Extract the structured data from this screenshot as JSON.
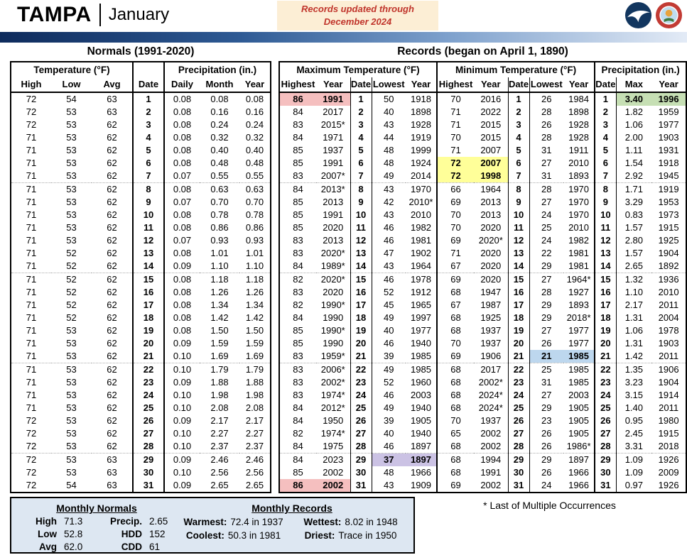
{
  "header": {
    "station": "TAMPA",
    "month": "January",
    "note_line1": "Records updated through",
    "note_line2": "December 2024"
  },
  "normals": {
    "title": "Normals (1991-2020)",
    "temp_group": "Temperature (°F)",
    "precip_group": "Precipitation (in.)",
    "columns": [
      "High",
      "Low",
      "Avg",
      "Date",
      "Daily",
      "Month",
      "Year"
    ],
    "rows": [
      [
        "72",
        "54",
        "63",
        "1",
        "0.08",
        "0.08",
        "0.08"
      ],
      [
        "72",
        "53",
        "63",
        "2",
        "0.08",
        "0.16",
        "0.16"
      ],
      [
        "72",
        "53",
        "62",
        "3",
        "0.08",
        "0.24",
        "0.24"
      ],
      [
        "71",
        "53",
        "62",
        "4",
        "0.08",
        "0.32",
        "0.32"
      ],
      [
        "71",
        "53",
        "62",
        "5",
        "0.08",
        "0.40",
        "0.40"
      ],
      [
        "71",
        "53",
        "62",
        "6",
        "0.08",
        "0.48",
        "0.48"
      ],
      [
        "71",
        "53",
        "62",
        "7",
        "0.07",
        "0.55",
        "0.55"
      ],
      [
        "71",
        "53",
        "62",
        "8",
        "0.08",
        "0.63",
        "0.63"
      ],
      [
        "71",
        "53",
        "62",
        "9",
        "0.07",
        "0.70",
        "0.70"
      ],
      [
        "71",
        "53",
        "62",
        "10",
        "0.08",
        "0.78",
        "0.78"
      ],
      [
        "71",
        "53",
        "62",
        "11",
        "0.08",
        "0.86",
        "0.86"
      ],
      [
        "71",
        "53",
        "62",
        "12",
        "0.07",
        "0.93",
        "0.93"
      ],
      [
        "71",
        "52",
        "62",
        "13",
        "0.08",
        "1.01",
        "1.01"
      ],
      [
        "71",
        "52",
        "62",
        "14",
        "0.09",
        "1.10",
        "1.10"
      ],
      [
        "71",
        "52",
        "62",
        "15",
        "0.08",
        "1.18",
        "1.18"
      ],
      [
        "71",
        "52",
        "62",
        "16",
        "0.08",
        "1.26",
        "1.26"
      ],
      [
        "71",
        "52",
        "62",
        "17",
        "0.08",
        "1.34",
        "1.34"
      ],
      [
        "71",
        "52",
        "62",
        "18",
        "0.08",
        "1.42",
        "1.42"
      ],
      [
        "71",
        "53",
        "62",
        "19",
        "0.08",
        "1.50",
        "1.50"
      ],
      [
        "71",
        "53",
        "62",
        "20",
        "0.09",
        "1.59",
        "1.59"
      ],
      [
        "71",
        "53",
        "62",
        "21",
        "0.10",
        "1.69",
        "1.69"
      ],
      [
        "71",
        "53",
        "62",
        "22",
        "0.10",
        "1.79",
        "1.79"
      ],
      [
        "71",
        "53",
        "62",
        "23",
        "0.09",
        "1.88",
        "1.88"
      ],
      [
        "71",
        "53",
        "62",
        "24",
        "0.10",
        "1.98",
        "1.98"
      ],
      [
        "71",
        "53",
        "62",
        "25",
        "0.10",
        "2.08",
        "2.08"
      ],
      [
        "72",
        "53",
        "62",
        "26",
        "0.09",
        "2.17",
        "2.17"
      ],
      [
        "72",
        "53",
        "62",
        "27",
        "0.10",
        "2.27",
        "2.27"
      ],
      [
        "72",
        "53",
        "62",
        "28",
        "0.10",
        "2.37",
        "2.37"
      ],
      [
        "72",
        "53",
        "63",
        "29",
        "0.09",
        "2.46",
        "2.46"
      ],
      [
        "72",
        "53",
        "63",
        "30",
        "0.10",
        "2.56",
        "2.56"
      ],
      [
        "72",
        "54",
        "63",
        "31",
        "0.09",
        "2.65",
        "2.65"
      ]
    ]
  },
  "records": {
    "title": "Records (began on April 1, 1890)",
    "max_group": "Maximum Temperature (°F)",
    "min_group": "Minimum Temperature (°F)",
    "precip_group": "Precipitation (in.)",
    "columns": [
      "Highest",
      "Year",
      "Date",
      "Lowest",
      "Year",
      "Highest",
      "Year",
      "Date",
      "Lowest",
      "Year",
      "Date",
      "Max",
      "Year"
    ],
    "rows": [
      [
        "86",
        "1991",
        "1",
        "50",
        "1918",
        "70",
        "2016",
        "1",
        "26",
        "1984",
        "1",
        "3.40",
        "1996"
      ],
      [
        "84",
        "2017",
        "2",
        "40",
        "1898",
        "71",
        "2022",
        "2",
        "28",
        "1898",
        "2",
        "1.82",
        "1959"
      ],
      [
        "83",
        "2015*",
        "3",
        "43",
        "1928",
        "71",
        "2015",
        "3",
        "26",
        "1928",
        "3",
        "1.06",
        "1977"
      ],
      [
        "84",
        "1971",
        "4",
        "44",
        "1919",
        "70",
        "2015",
        "4",
        "28",
        "1928",
        "4",
        "2.00",
        "1903"
      ],
      [
        "85",
        "1937",
        "5",
        "48",
        "1999",
        "71",
        "2007",
        "5",
        "31",
        "1911",
        "5",
        "1.11",
        "1931"
      ],
      [
        "85",
        "1991",
        "6",
        "48",
        "1924",
        "72",
        "2007",
        "6",
        "27",
        "2010",
        "6",
        "1.54",
        "1918"
      ],
      [
        "83",
        "2007*",
        "7",
        "49",
        "2014",
        "72",
        "1998",
        "7",
        "31",
        "1893",
        "7",
        "2.92",
        "1945"
      ],
      [
        "84",
        "2013*",
        "8",
        "43",
        "1970",
        "66",
        "1964",
        "8",
        "28",
        "1970",
        "8",
        "1.71",
        "1919"
      ],
      [
        "85",
        "2013",
        "9",
        "42",
        "2010*",
        "69",
        "2013",
        "9",
        "27",
        "1970",
        "9",
        "3.29",
        "1953"
      ],
      [
        "85",
        "1991",
        "10",
        "43",
        "2010",
        "70",
        "2013",
        "10",
        "24",
        "1970",
        "10",
        "0.83",
        "1973"
      ],
      [
        "85",
        "2020",
        "11",
        "46",
        "1982",
        "70",
        "2020",
        "11",
        "25",
        "2010",
        "11",
        "1.57",
        "1915"
      ],
      [
        "83",
        "2013",
        "12",
        "46",
        "1981",
        "69",
        "2020*",
        "12",
        "24",
        "1982",
        "12",
        "2.80",
        "1925"
      ],
      [
        "83",
        "2020*",
        "13",
        "47",
        "1902",
        "71",
        "2020",
        "13",
        "22",
        "1981",
        "13",
        "1.57",
        "1904"
      ],
      [
        "84",
        "1989*",
        "14",
        "43",
        "1964",
        "67",
        "2020",
        "14",
        "29",
        "1981",
        "14",
        "2.65",
        "1892"
      ],
      [
        "82",
        "2020*",
        "15",
        "46",
        "1978",
        "69",
        "2020",
        "15",
        "27",
        "1964*",
        "15",
        "1.32",
        "1936"
      ],
      [
        "83",
        "2020",
        "16",
        "52",
        "1912",
        "68",
        "1947",
        "16",
        "28",
        "1927",
        "16",
        "1.10",
        "2010"
      ],
      [
        "82",
        "1990*",
        "17",
        "45",
        "1965",
        "67",
        "1987",
        "17",
        "29",
        "1893",
        "17",
        "2.17",
        "2011"
      ],
      [
        "84",
        "1990",
        "18",
        "49",
        "1997",
        "68",
        "1925",
        "18",
        "29",
        "2018*",
        "18",
        "1.31",
        "2004"
      ],
      [
        "85",
        "1990*",
        "19",
        "40",
        "1977",
        "68",
        "1937",
        "19",
        "27",
        "1977",
        "19",
        "1.06",
        "1978"
      ],
      [
        "85",
        "1990",
        "20",
        "46",
        "1940",
        "70",
        "1937",
        "20",
        "26",
        "1977",
        "20",
        "1.31",
        "1903"
      ],
      [
        "83",
        "1959*",
        "21",
        "39",
        "1985",
        "69",
        "1906",
        "21",
        "21",
        "1985",
        "21",
        "1.42",
        "2011"
      ],
      [
        "83",
        "2006*",
        "22",
        "49",
        "1985",
        "68",
        "2017",
        "22",
        "25",
        "1985",
        "22",
        "1.35",
        "1906"
      ],
      [
        "83",
        "2002*",
        "23",
        "52",
        "1960",
        "68",
        "2002*",
        "23",
        "31",
        "1985",
        "23",
        "3.23",
        "1904"
      ],
      [
        "83",
        "1974*",
        "24",
        "46",
        "2003",
        "68",
        "2024*",
        "24",
        "27",
        "2003",
        "24",
        "3.15",
        "1914"
      ],
      [
        "84",
        "2012*",
        "25",
        "49",
        "1940",
        "68",
        "2024*",
        "25",
        "29",
        "1905",
        "25",
        "1.40",
        "2011"
      ],
      [
        "84",
        "1950",
        "26",
        "39",
        "1905",
        "70",
        "1937",
        "26",
        "23",
        "1905",
        "26",
        "0.95",
        "1980"
      ],
      [
        "82",
        "1974*",
        "27",
        "40",
        "1940",
        "65",
        "2002",
        "27",
        "26",
        "1905",
        "27",
        "2.45",
        "1915"
      ],
      [
        "84",
        "1975",
        "28",
        "46",
        "1897",
        "68",
        "2002",
        "28",
        "26",
        "1986*",
        "28",
        "3.31",
        "2018"
      ],
      [
        "84",
        "2023",
        "29",
        "37",
        "1897",
        "68",
        "1994",
        "29",
        "29",
        "1897",
        "29",
        "1.09",
        "1926"
      ],
      [
        "85",
        "2002",
        "30",
        "48",
        "1966",
        "68",
        "1991",
        "30",
        "26",
        "1966",
        "30",
        "1.09",
        "2009"
      ],
      [
        "86",
        "2002",
        "31",
        "43",
        "1909",
        "69",
        "2002",
        "31",
        "24",
        "1966",
        "31",
        "0.97",
        "1926"
      ]
    ],
    "highlights": [
      {
        "row": 1,
        "cols": [
          0,
          1
        ],
        "color": "hl_pink"
      },
      {
        "row": 1,
        "cols": [
          11,
          12
        ],
        "color": "hl_green"
      },
      {
        "row": 6,
        "cols": [
          5,
          6
        ],
        "color": "hl_yellow"
      },
      {
        "row": 7,
        "cols": [
          5,
          6
        ],
        "color": "hl_yellow"
      },
      {
        "row": 21,
        "cols": [
          8,
          9
        ],
        "color": "hl_blue"
      },
      {
        "row": 29,
        "cols": [
          3,
          4
        ],
        "color": "hl_lavender"
      },
      {
        "row": 31,
        "cols": [
          0,
          1
        ],
        "color": "hl_pink"
      }
    ]
  },
  "summary": {
    "normals_title": "Monthly Normals",
    "records_title": "Monthly Records",
    "normals": [
      {
        "label": "High",
        "value": "71.3"
      },
      {
        "label": "Precip.",
        "value": "2.65"
      },
      {
        "label": "Low",
        "value": "52.8"
      },
      {
        "label": "HDD",
        "value": "152"
      },
      {
        "label": "Avg",
        "value": "62.0"
      },
      {
        "label": "CDD",
        "value": "61"
      }
    ],
    "records": [
      {
        "label": "Warmest:",
        "value": "72.4 in 1937"
      },
      {
        "label": "Wettest:",
        "value": "8.02 in 1948"
      },
      {
        "label": "Coolest:",
        "value": "50.3 in 1981"
      },
      {
        "label": "Driest:",
        "value": "Trace in 1950"
      }
    ]
  },
  "footnote": "* Last of Multiple Occurrences",
  "colors": {
    "note_bg": "#FCEED5",
    "note_text": "#C0342B",
    "bar_dark": "#0E2B5C",
    "bar_light": "#E3EBF6",
    "summary_bg": "#DDE7F2",
    "hl_pink": "#F5BFBF",
    "hl_yellow": "#FFFF99",
    "hl_lavender": "#CBC2E4",
    "hl_blue": "#BDD7EE",
    "hl_green": "#C6DFB4"
  }
}
